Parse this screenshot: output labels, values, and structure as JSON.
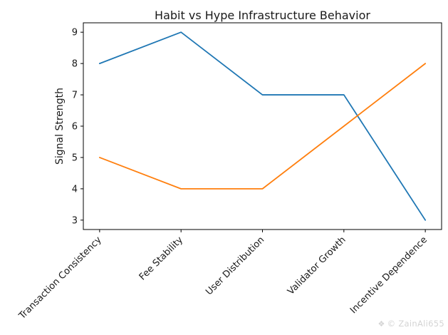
{
  "chart_data": {
    "type": "line",
    "title": "Habit vs Hype Infrastructure Behavior",
    "xlabel": "",
    "ylabel": "Signal Strength",
    "categories": [
      "Transaction Consistency",
      "Fee Stability",
      "User Distribution",
      "Validator Growth",
      "Incentive Dependence"
    ],
    "series": [
      {
        "name": "blue",
        "color": "#1f77b4",
        "values": [
          8,
          9,
          7,
          7,
          3
        ]
      },
      {
        "name": "orange",
        "color": "#ff7f0e",
        "values": [
          5,
          4,
          4,
          6,
          8
        ]
      }
    ],
    "yticks": [
      3,
      4,
      5,
      6,
      7,
      8,
      9
    ],
    "ylim": [
      2.7,
      9.3
    ],
    "xlim": [
      -0.2,
      4.2
    ],
    "grid": false,
    "legend": "none",
    "x_tick_rotation": 45
  },
  "watermark": {
    "icon": "❖",
    "text": "© ZainAli655"
  }
}
